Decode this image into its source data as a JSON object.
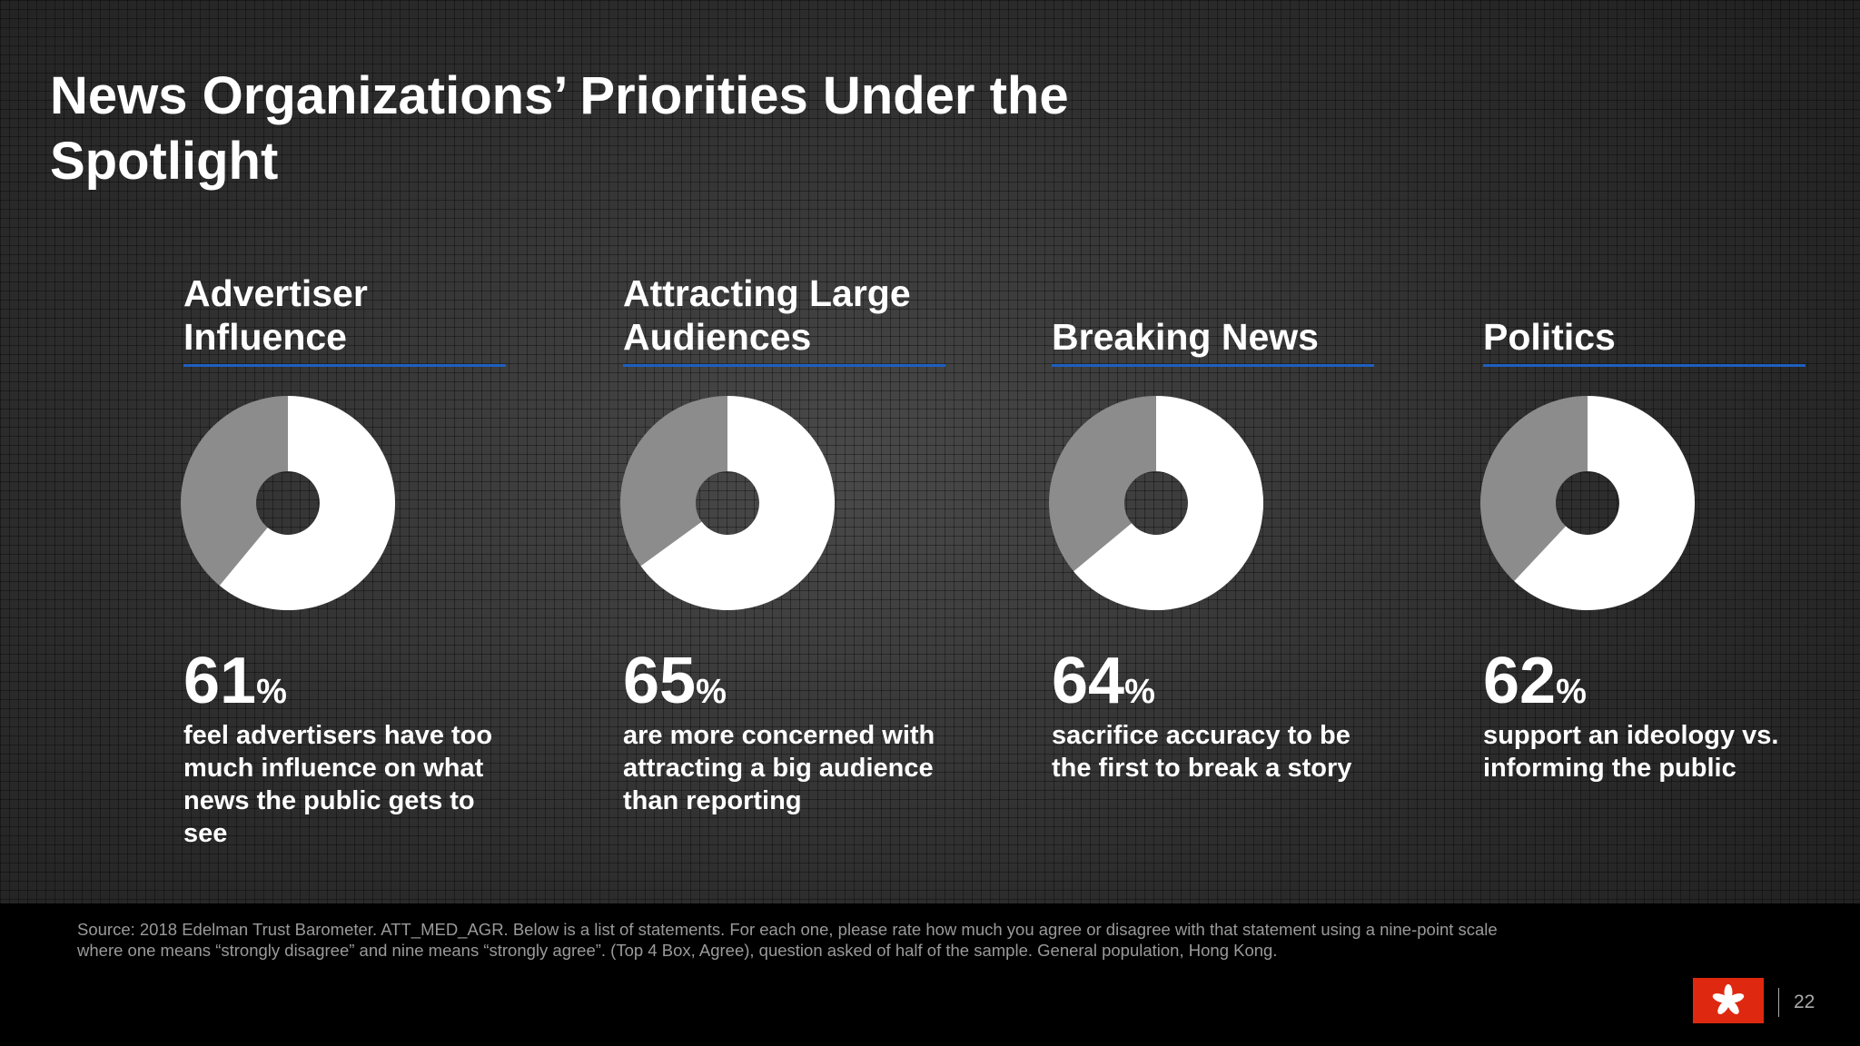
{
  "title": "News Organizations’ Priorities Under the Spotlight",
  "source": "Source: 2018 Edelman Trust Barometer. ATT_MED_AGR. Below is a list of statements. For each one, please rate how much you agree or disagree with that statement using a nine-point scale where one means “strongly disagree” and nine means “strongly agree”. (Top 4 Box, Agree), question asked of half of the sample. General population, Hong Kong.",
  "page_number": "22",
  "chart_data": [
    {
      "type": "donut",
      "title": "Advertiser Influence",
      "values": [
        61
      ],
      "value_labels": [
        "61%"
      ],
      "color": "#ffffff",
      "rest_color": "#8c8c8c",
      "description": "feel advertisers have too much influence on what news the public gets to see"
    },
    {
      "type": "donut",
      "title": "Attracting Large Audiences",
      "values": [
        65
      ],
      "value_labels": [
        "65%"
      ],
      "color": "#ffffff",
      "rest_color": "#8c8c8c",
      "description": "are more concerned with attracting a big audience than reporting"
    },
    {
      "type": "donut",
      "title": "Breaking News",
      "values": [
        64
      ],
      "value_labels": [
        "64%"
      ],
      "color": "#ffffff",
      "rest_color": "#8c8c8c",
      "description": "sacrifice accuracy to be the first to break a story"
    },
    {
      "type": "donut",
      "title": "Politics",
      "values": [
        62
      ],
      "value_labels": [
        "62%"
      ],
      "color": "#ffffff",
      "rest_color": "#8c8c8c",
      "description": "support an ideology vs. informing the public"
    }
  ]
}
